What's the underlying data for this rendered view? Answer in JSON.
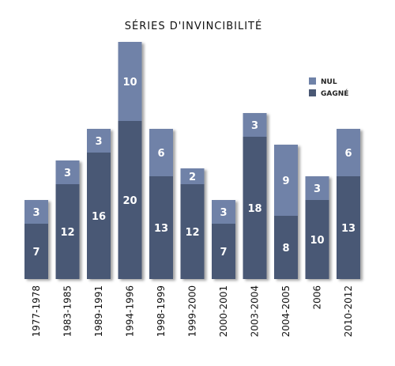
{
  "chart_data": {
    "type": "bar",
    "stacked": true,
    "title": "SÉRIES D'INVINCIBILITÉ",
    "categories": [
      "1977-1978",
      "1983-1985",
      "1989-1991",
      "1994-1996",
      "1998-1999",
      "1999-2000",
      "2000-2001",
      "2003-2004",
      "2004-2005",
      "2006",
      "2010-2012"
    ],
    "series": [
      {
        "name": "GAGNÉ",
        "color": "#4a5874",
        "values": [
          7,
          12,
          16,
          20,
          13,
          12,
          7,
          18,
          8,
          10,
          13
        ]
      },
      {
        "name": "NUL",
        "color": "#6f82a8",
        "values": [
          3,
          3,
          3,
          10,
          6,
          2,
          3,
          3,
          9,
          3,
          6
        ]
      }
    ],
    "ylim": [
      0,
      30
    ],
    "grid": false,
    "legend_position": "top-right",
    "legend": [
      {
        "name": "NUL",
        "color": "#6f82a8"
      },
      {
        "name": "GAGNÉ",
        "color": "#4a5874"
      }
    ]
  }
}
